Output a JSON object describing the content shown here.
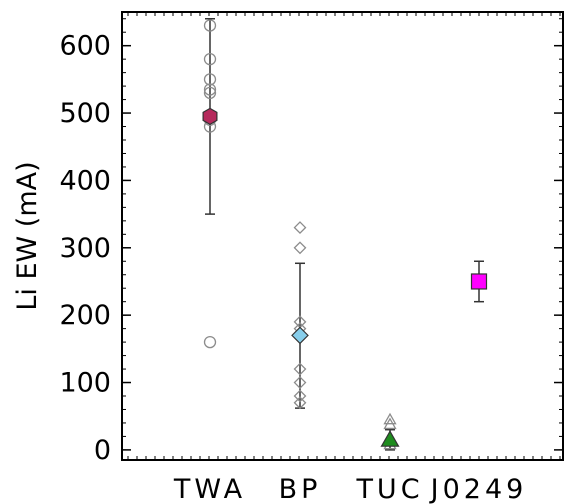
{
  "chart_data": {
    "type": "scatter",
    "title": "",
    "xlabel": "",
    "ylabel": "Li EW (mA)",
    "ylim": [
      -15,
      650
    ],
    "yticks": [
      0,
      100,
      200,
      300,
      400,
      500,
      600
    ],
    "grid": false,
    "legend": "none",
    "categories": [
      "TWA",
      "BP",
      "TUC",
      "J0249"
    ],
    "individual_points": [
      {
        "category": "TWA",
        "marker": "circle",
        "color": "#8c8c8c",
        "values": [
          630,
          580,
          550,
          535,
          530,
          490,
          480,
          160
        ]
      },
      {
        "category": "BP",
        "marker": "diamond",
        "color": "#8c8c8c",
        "values": [
          330,
          300,
          190,
          180,
          120,
          100,
          80,
          70
        ]
      },
      {
        "category": "TUC",
        "marker": "triangle",
        "color": "#8c8c8c",
        "values": [
          45,
          38,
          15,
          8
        ]
      }
    ],
    "summary_points": [
      {
        "category": "TWA",
        "marker": "hexagon",
        "color": "#b52a5c",
        "value": 495,
        "err_low": 350,
        "err_high": 640
      },
      {
        "category": "BP",
        "marker": "diamond",
        "color": "#87ceeb",
        "value": 170,
        "err_low": 62,
        "err_high": 277
      },
      {
        "category": "TUC",
        "marker": "triangle",
        "color": "#1e8c1e",
        "value": 15,
        "err_low": 0,
        "err_high": 30
      },
      {
        "category": "J0249",
        "marker": "square",
        "color": "#ff00ff",
        "value": 250,
        "err_low": 220,
        "err_high": 280
      }
    ]
  }
}
